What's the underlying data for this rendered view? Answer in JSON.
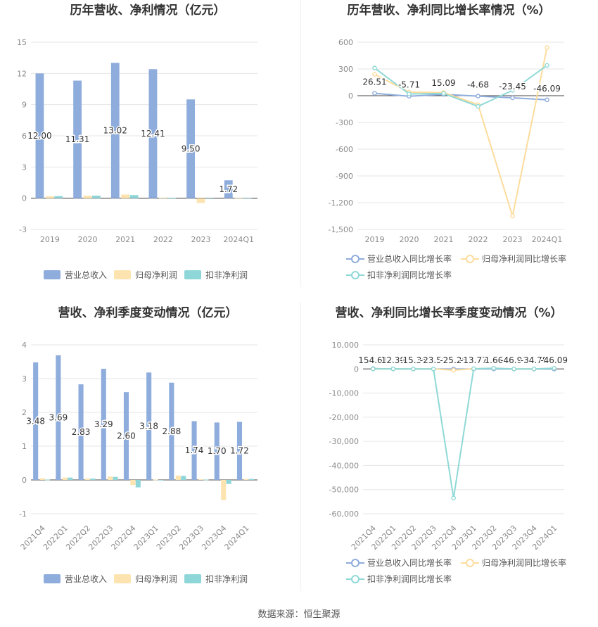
{
  "source_text": "数据来源：恒生聚源",
  "colors": {
    "revenue": "#8eacdc",
    "net_profit": "#fde3b0",
    "deducted_profit": "#8fd6d9",
    "revenue_line": "#8eacdc",
    "net_line": "#fddc9c",
    "deducted_line": "#8fd9d6",
    "grid": "#e6e6e6",
    "axis_text": "#8a8a8a",
    "title": "#333333"
  },
  "chart_data": [
    {
      "id": "annual-amount",
      "type": "bar",
      "title": "历年营收、净利情况（亿元）",
      "categories": [
        "2019",
        "2020",
        "2021",
        "2022",
        "2023",
        "2024Q1"
      ],
      "yticks": [
        "15",
        "12",
        "9",
        "6",
        "3",
        "0",
        "-3"
      ],
      "ylim": [
        -3,
        15
      ],
      "series": [
        {
          "name": "营业总收入",
          "values": [
            12.0,
            11.31,
            13.02,
            12.41,
            9.5,
            1.72
          ],
          "labels": [
            "12.00",
            "11.31",
            "13.02",
            "12.41",
            "9.50",
            "1.72"
          ]
        },
        {
          "name": "归母净利润",
          "values": [
            0.18,
            0.25,
            0.35,
            0.05,
            -0.45,
            0.02
          ]
        },
        {
          "name": "扣非净利润",
          "values": [
            0.2,
            0.25,
            0.3,
            0.02,
            -0.05,
            0.02
          ]
        }
      ],
      "legend": "bottom"
    },
    {
      "id": "annual-growth",
      "type": "line",
      "title": "历年营收、净利同比增长率情况（%）",
      "categories": [
        "2019",
        "2020",
        "2021",
        "2022",
        "2023",
        "2024Q1"
      ],
      "yticks": [
        "600",
        "300",
        "0",
        "-300",
        "-600",
        "-900",
        "-1,200",
        "-1,500"
      ],
      "ylim": [
        -1500,
        600
      ],
      "series": [
        {
          "name": "营业总收入同比增长率",
          "values": [
            26.51,
            -5.71,
            15.09,
            -4.68,
            -23.45,
            -46.09
          ],
          "labels": [
            "26.51",
            "-5.71",
            "15.09",
            "-4.68",
            "-23.45",
            "-46.09"
          ]
        },
        {
          "name": "归母净利润同比增长率",
          "values": [
            240,
            40,
            35,
            -100,
            -1350,
            540
          ]
        },
        {
          "name": "扣非净利润同比增长率",
          "values": [
            310,
            20,
            25,
            -120,
            60,
            340
          ]
        }
      ],
      "legend": "bottom"
    },
    {
      "id": "quarterly-amount",
      "type": "bar",
      "title": "营收、净利季度变动情况（亿元）",
      "categories": [
        "2021Q4",
        "2022Q1",
        "2022Q2",
        "2022Q3",
        "2022Q4",
        "2023Q1",
        "2023Q2",
        "2023Q3",
        "2023Q4",
        "2024Q1"
      ],
      "yticks": [
        "4",
        "3",
        "2",
        "1",
        "0",
        "-1"
      ],
      "ylim": [
        -1,
        4
      ],
      "series": [
        {
          "name": "营业总收入",
          "values": [
            3.48,
            3.69,
            2.83,
            3.29,
            2.6,
            3.18,
            2.88,
            1.74,
            1.7,
            1.72
          ],
          "labels": [
            "3.48",
            "3.69",
            "2.83",
            "3.29",
            "2.60",
            "3.18",
            "2.88",
            "1.74",
            "1.70",
            "1.72"
          ]
        },
        {
          "name": "归母净利润",
          "values": [
            0.05,
            0.07,
            0.04,
            0.1,
            -0.15,
            0.01,
            0.13,
            0.02,
            -0.6,
            0.03
          ]
        },
        {
          "name": "扣非净利润",
          "values": [
            0.01,
            0.07,
            0.04,
            0.09,
            -0.22,
            0.0,
            0.12,
            0.01,
            -0.12,
            0.03
          ]
        }
      ],
      "legend": "bottom"
    },
    {
      "id": "quarterly-growth",
      "type": "line",
      "title": "营收、净利同比增长率季度变动情况（%）",
      "categories": [
        "2021Q4",
        "2022Q1",
        "2022Q2",
        "2022Q3",
        "2022Q4",
        "2023Q1",
        "2023Q2",
        "2023Q3",
        "2023Q4",
        "2024Q1"
      ],
      "yticks": [
        "10,000",
        "0",
        "-10,000",
        "-20,000",
        "-30,000",
        "-40,000",
        "-50,000",
        "-60,000"
      ],
      "ylim": [
        -60000,
        10000
      ],
      "series": [
        {
          "name": "营业总收入同比增长率",
          "values": [
            154.61,
            12.39,
            -15.36,
            -23.5,
            -25.26,
            -13.77,
            1.66,
            -46.97,
            -34.78,
            -46.09
          ],
          "labels": [
            "154.61",
            "12.39",
            "-15.36",
            "-23.50",
            "-25.26",
            "-13.77",
            "1.66",
            "-46.97",
            "-34.78",
            "-46.09"
          ]
        },
        {
          "name": "归母净利润同比增长率",
          "values": [
            0,
            50,
            0,
            0,
            -500,
            100,
            300,
            0,
            0,
            300
          ]
        },
        {
          "name": "扣非净利润同比增长率",
          "values": [
            0,
            50,
            0,
            0,
            -53500,
            100,
            300,
            0,
            0,
            300
          ]
        }
      ],
      "legend": "bottom"
    }
  ]
}
